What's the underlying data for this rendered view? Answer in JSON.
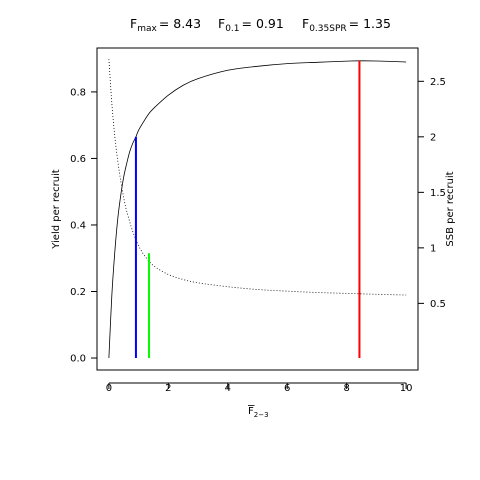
{
  "chart_data": {
    "type": "line",
    "title": {
      "fmax_main": "F",
      "fmax_sub": "max",
      "fmax_value": "= 8.43",
      "f01_main": "F",
      "f01_sub": "0.1",
      "f01_value": "= 0.91",
      "fspr_main": "F",
      "fspr_sub": "0.35SPR",
      "fspr_value": "= 1.35"
    },
    "xlabel_main": "F",
    "xlabel_sub": "2−3",
    "ylabel_left": "Yield per recruit",
    "ylabel_right": "SSB per recruit",
    "xlim": [
      -0.4,
      10.4
    ],
    "ylim_left": [
      -0.036,
      0.932
    ],
    "ylim_right": [
      -0.1,
      2.8
    ],
    "x_ticks": [
      0,
      2,
      4,
      6,
      8,
      10
    ],
    "x_tick_labels": [
      "0",
      "2",
      "4",
      "6",
      "8",
      "10"
    ],
    "y_left_ticks": [
      0.0,
      0.2,
      0.4,
      0.6,
      0.8
    ],
    "y_left_tick_labels": [
      "0.0",
      "0.2",
      "0.4",
      "0.6",
      "0.8"
    ],
    "y_right_ticks": [
      0.5,
      1.0,
      1.5,
      2.0,
      2.5
    ],
    "y_right_tick_labels": [
      "0.5",
      "1",
      "1.5",
      "2",
      "2.5"
    ],
    "series": [
      {
        "axis": "left",
        "line_style": "solid",
        "x": [
          0,
          0.1,
          0.2,
          0.3,
          0.4,
          0.5,
          0.6,
          0.7,
          0.8,
          0.91,
          1.0,
          1.2,
          1.35,
          1.5,
          2,
          2.5,
          3,
          4,
          5,
          6,
          7,
          8,
          8.43,
          9,
          10
        ],
        "y": [
          0,
          0.19,
          0.32,
          0.42,
          0.49,
          0.545,
          0.585,
          0.62,
          0.645,
          0.665,
          0.685,
          0.715,
          0.735,
          0.75,
          0.79,
          0.82,
          0.84,
          0.865,
          0.877,
          0.885,
          0.889,
          0.8925,
          0.8935,
          0.893,
          0.89
        ]
      },
      {
        "axis": "right",
        "line_style": "dotted",
        "x": [
          0,
          0.1,
          0.2,
          0.3,
          0.4,
          0.5,
          0.6,
          0.8,
          1.0,
          1.2,
          1.5,
          2,
          2.5,
          3,
          4,
          5,
          6,
          7,
          8,
          9,
          10
        ],
        "y": [
          2.7,
          2.3,
          2.0,
          1.78,
          1.6,
          1.45,
          1.33,
          1.15,
          1.02,
          0.93,
          0.84,
          0.76,
          0.715,
          0.685,
          0.65,
          0.625,
          0.61,
          0.598,
          0.59,
          0.582,
          0.575
        ]
      }
    ],
    "reference_lines": [
      {
        "name": "F0.1",
        "color": "#0000ff",
        "x": 0.91,
        "y_top": 0.665
      },
      {
        "name": "F0.35SPR",
        "color": "#00ff00",
        "x": 1.35,
        "y_top": 0.315
      },
      {
        "name": "Fmax",
        "color": "#ff0000",
        "x": 8.43,
        "y_top": 0.8935
      }
    ]
  }
}
